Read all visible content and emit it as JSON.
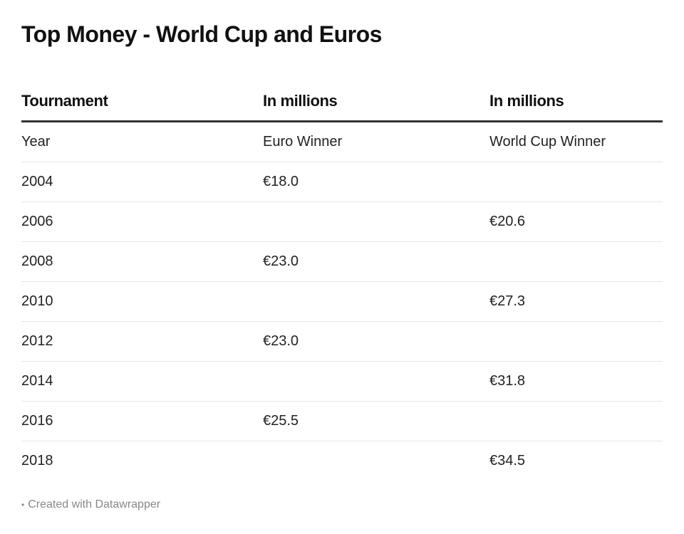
{
  "title": "Top Money - World Cup and Euros",
  "columns": [
    "Tournament",
    "In millions",
    "In millions"
  ],
  "rows": [
    [
      "Year",
      "Euro Winner",
      "World Cup Winner"
    ],
    [
      "2004",
      "€18.0",
      ""
    ],
    [
      "2006",
      "",
      "€20.6"
    ],
    [
      "2008",
      "€23.0",
      ""
    ],
    [
      "2010",
      "",
      "€27.3"
    ],
    [
      "2012",
      "€23.0",
      ""
    ],
    [
      "2014",
      "",
      "€31.8"
    ],
    [
      "2016",
      "€25.5",
      ""
    ],
    [
      "2018",
      "",
      "€34.5"
    ]
  ],
  "footer": {
    "bullet": "•",
    "text": "Created with Datawrapper"
  },
  "chart_data": {
    "type": "table",
    "title": "Top Money - World Cup and Euros",
    "columns": [
      "Tournament",
      "In millions",
      "In millions"
    ],
    "subheader": [
      "Year",
      "Euro Winner",
      "World Cup Winner"
    ],
    "categories": [
      "2004",
      "2006",
      "2008",
      "2010",
      "2012",
      "2014",
      "2016",
      "2018"
    ],
    "series": [
      {
        "name": "Euro Winner",
        "unit": "€ millions",
        "values": [
          18.0,
          null,
          23.0,
          null,
          23.0,
          null,
          25.5,
          null
        ]
      },
      {
        "name": "World Cup Winner",
        "unit": "€ millions",
        "values": [
          null,
          20.6,
          null,
          27.3,
          null,
          31.8,
          null,
          34.5
        ]
      }
    ]
  }
}
